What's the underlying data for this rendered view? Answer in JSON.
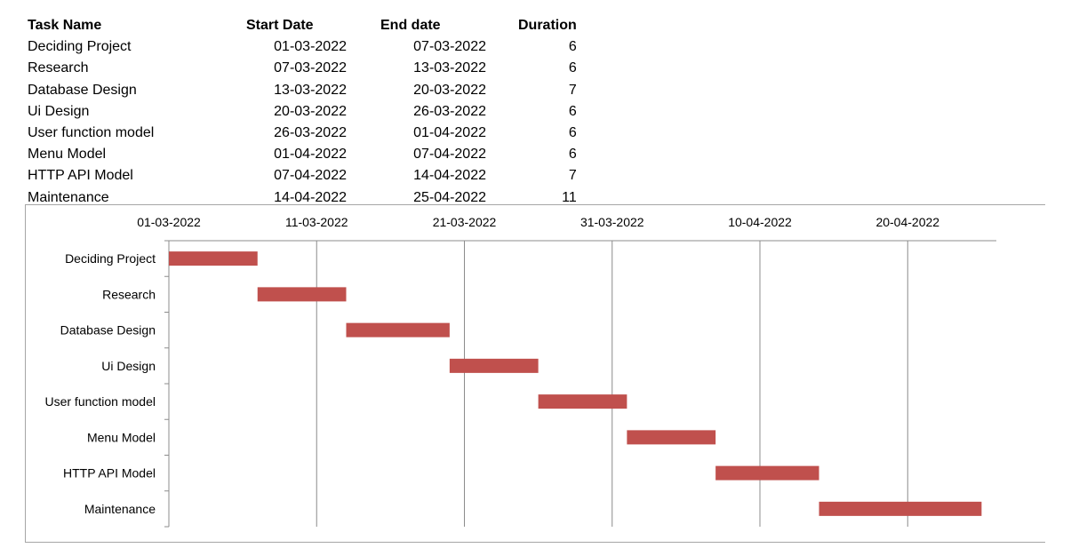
{
  "table": {
    "headers": [
      "Task Name",
      "Start Date",
      "End date",
      "Duration"
    ],
    "rows": [
      [
        "Deciding Project",
        "01-03-2022",
        "07-03-2022",
        "6"
      ],
      [
        "Research",
        "07-03-2022",
        "13-03-2022",
        "6"
      ],
      [
        "Database Design",
        "13-03-2022",
        "20-03-2022",
        "7"
      ],
      [
        "Ui Design",
        "20-03-2022",
        "26-03-2022",
        "6"
      ],
      [
        "User function model",
        "26-03-2022",
        "01-04-2022",
        "6"
      ],
      [
        "Menu Model",
        "01-04-2022",
        "07-04-2022",
        "6"
      ],
      [
        "HTTP API Model",
        "07-04-2022",
        "14-04-2022",
        "7"
      ],
      [
        "Maintenance",
        "14-04-2022",
        "25-04-2022",
        "11"
      ]
    ]
  },
  "chart_data": {
    "type": "bar",
    "orientation": "horizontal",
    "categories": [
      "Deciding Project",
      "Research",
      "Database Design",
      "Ui Design",
      "User function model",
      "Menu Model",
      "HTTP API Model",
      "Maintenance"
    ],
    "series": [
      {
        "start": [
          "01-03-2022",
          "07-03-2022",
          "13-03-2022",
          "20-03-2022",
          "26-03-2022",
          "01-04-2022",
          "07-04-2022",
          "14-04-2022"
        ],
        "end": [
          "07-03-2022",
          "13-03-2022",
          "20-03-2022",
          "26-03-2022",
          "01-04-2022",
          "07-04-2022",
          "14-04-2022",
          "25-04-2022"
        ],
        "values": [
          6,
          6,
          7,
          6,
          6,
          6,
          7,
          11
        ],
        "color": "#c0504d"
      }
    ],
    "x_ticks": [
      "01-03-2022",
      "11-03-2022",
      "21-03-2022",
      "31-03-2022",
      "10-04-2022",
      "20-04-2022"
    ],
    "xlim": [
      "01-03-2022",
      "26-04-2022"
    ],
    "x_axis_position": "top",
    "grid": "vertical",
    "title": "",
    "xlabel": "",
    "ylabel": "",
    "legend": "none"
  }
}
